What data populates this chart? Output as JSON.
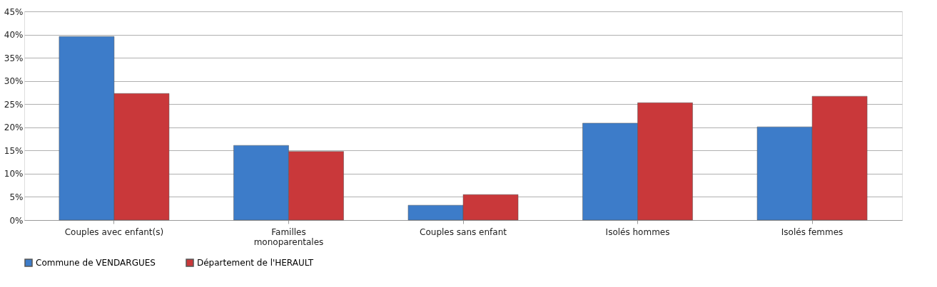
{
  "chart_data": {
    "type": "bar",
    "categories": [
      "Couples avec enfant(s)",
      "Familles\nmonoparentales",
      "Couples sans enfant",
      "Isolés hommes",
      "Isolés femmes"
    ],
    "series": [
      {
        "name": "Commune de VENDARGUES",
        "color": "#3d7cc9",
        "values": [
          39.6,
          16.1,
          3.2,
          20.9,
          20.1
        ]
      },
      {
        "name": "Département de l'HERAULT",
        "color": "#c9383a",
        "values": [
          27.3,
          14.8,
          5.5,
          25.3,
          26.7
        ]
      }
    ],
    "ylim": [
      0,
      45
    ],
    "yticks": [
      {
        "value": 0,
        "label": "0%"
      },
      {
        "value": 5,
        "label": "5%"
      },
      {
        "value": 10,
        "label": "10%"
      },
      {
        "value": 15,
        "label": "15%"
      },
      {
        "value": 20,
        "label": "20%"
      },
      {
        "value": 25,
        "label": "25%"
      },
      {
        "value": 30,
        "label": "30%"
      },
      {
        "value": 35,
        "label": "35%"
      },
      {
        "value": 40,
        "label": "40%"
      },
      {
        "value": 45,
        "label": "45%"
      }
    ],
    "grid": "y",
    "legend": "bottom"
  }
}
